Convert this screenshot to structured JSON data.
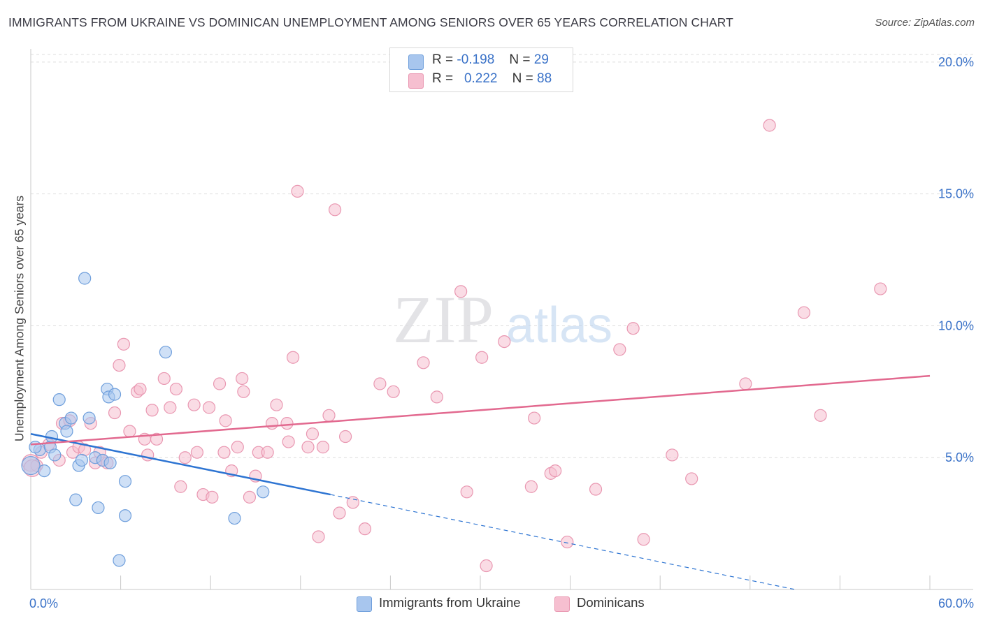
{
  "title": "IMMIGRANTS FROM UKRAINE VS DOMINICAN UNEMPLOYMENT AMONG SENIORS OVER 65 YEARS CORRELATION CHART",
  "source": "Source: ZipAtlas.com",
  "watermark": {
    "zip": "ZIP",
    "atlas": "atlas"
  },
  "legend_top": [
    {
      "r_label": "R =",
      "r_value": "-0.198",
      "n_label": "N =",
      "n_value": "29"
    },
    {
      "r_label": "R =",
      "r_value": "0.222",
      "n_label": "N =",
      "n_value": "88"
    }
  ],
  "legend_bottom": [
    "Immigrants from Ukraine",
    "Dominicans"
  ],
  "colors": {
    "ukraine_fill": "#a8c6ee",
    "ukraine_stroke": "#6f9fdc",
    "ukraine_line": "#2d74d2",
    "dominican_fill": "#f6bfd0",
    "dominican_stroke": "#e997b1",
    "dominican_line": "#e2698f",
    "axis_text": "#3a72c8",
    "grid": "#dddddd"
  },
  "chart_data": {
    "type": "scatter",
    "title": "IMMIGRANTS FROM UKRAINE VS DOMINICAN UNEMPLOYMENT AMONG SENIORS OVER 65 YEARS CORRELATION CHART",
    "xlabel": "",
    "ylabel": "Unemployment Among Seniors over 65 years",
    "xlim": [
      0,
      60
    ],
    "ylim": [
      0,
      20.5
    ],
    "x_tick_labels": [
      "0.0%",
      "60.0%"
    ],
    "y_ticks": [
      5,
      10,
      15,
      20
    ],
    "y_tick_labels": [
      "5.0%",
      "10.0%",
      "15.0%",
      "20.0%"
    ],
    "series": [
      {
        "name": "Immigrants from Ukraine",
        "r": -0.198,
        "n": 29,
        "trend": {
          "x0": 0,
          "y0": 5.9,
          "x1": 20,
          "y1": 3.6,
          "dash_x1": 51,
          "dash_y1": 0
        },
        "points": [
          [
            0.0,
            4.7
          ],
          [
            0.6,
            5.3
          ],
          [
            0.9,
            4.5
          ],
          [
            1.3,
            5.4
          ],
          [
            1.4,
            5.8
          ],
          [
            1.6,
            5.1
          ],
          [
            1.9,
            7.2
          ],
          [
            2.3,
            6.3
          ],
          [
            2.4,
            6.0
          ],
          [
            2.7,
            6.5
          ],
          [
            3.0,
            3.4
          ],
          [
            3.2,
            4.7
          ],
          [
            3.4,
            4.9
          ],
          [
            3.6,
            11.8
          ],
          [
            3.9,
            6.5
          ],
          [
            4.3,
            5.0
          ],
          [
            4.5,
            3.1
          ],
          [
            4.8,
            4.9
          ],
          [
            5.1,
            7.6
          ],
          [
            5.2,
            7.3
          ],
          [
            5.3,
            4.8
          ],
          [
            5.6,
            7.4
          ],
          [
            5.9,
            1.1
          ],
          [
            6.3,
            4.1
          ],
          [
            6.3,
            2.8
          ],
          [
            9.0,
            9.0
          ],
          [
            13.6,
            2.7
          ],
          [
            15.5,
            3.7
          ],
          [
            0.3,
            5.4
          ]
        ]
      },
      {
        "name": "Dominicans",
        "r": 0.222,
        "n": 88,
        "trend": {
          "x0": 0,
          "y0": 5.5,
          "x1": 60,
          "y1": 8.1
        },
        "points": [
          [
            0.0,
            4.8
          ],
          [
            0.4,
            4.7
          ],
          [
            0.7,
            5.2
          ],
          [
            1.2,
            5.5
          ],
          [
            1.9,
            4.9
          ],
          [
            2.1,
            6.3
          ],
          [
            2.6,
            6.4
          ],
          [
            2.8,
            5.2
          ],
          [
            3.2,
            5.4
          ],
          [
            3.6,
            5.3
          ],
          [
            4.0,
            6.3
          ],
          [
            4.3,
            4.8
          ],
          [
            4.6,
            5.2
          ],
          [
            4.8,
            4.9
          ],
          [
            5.1,
            4.8
          ],
          [
            5.6,
            6.7
          ],
          [
            5.9,
            8.5
          ],
          [
            6.2,
            9.3
          ],
          [
            6.6,
            6.0
          ],
          [
            7.1,
            7.5
          ],
          [
            7.3,
            7.6
          ],
          [
            7.6,
            5.7
          ],
          [
            7.8,
            5.1
          ],
          [
            8.1,
            6.8
          ],
          [
            8.4,
            5.7
          ],
          [
            8.9,
            8.0
          ],
          [
            9.3,
            6.9
          ],
          [
            9.7,
            7.6
          ],
          [
            10.0,
            3.9
          ],
          [
            10.3,
            5.0
          ],
          [
            10.9,
            7.0
          ],
          [
            11.1,
            5.2
          ],
          [
            11.5,
            3.6
          ],
          [
            11.9,
            6.9
          ],
          [
            12.1,
            3.5
          ],
          [
            12.6,
            7.8
          ],
          [
            12.9,
            5.2
          ],
          [
            13.0,
            6.4
          ],
          [
            13.4,
            4.5
          ],
          [
            13.8,
            5.4
          ],
          [
            14.1,
            8.0
          ],
          [
            14.2,
            7.5
          ],
          [
            14.6,
            3.5
          ],
          [
            15.0,
            4.3
          ],
          [
            15.2,
            5.2
          ],
          [
            15.8,
            5.2
          ],
          [
            16.1,
            6.3
          ],
          [
            16.4,
            7.0
          ],
          [
            17.1,
            6.3
          ],
          [
            17.2,
            5.6
          ],
          [
            17.5,
            8.8
          ],
          [
            17.8,
            15.1
          ],
          [
            18.5,
            5.4
          ],
          [
            18.8,
            5.9
          ],
          [
            19.2,
            2.0
          ],
          [
            19.5,
            5.4
          ],
          [
            19.9,
            6.6
          ],
          [
            20.3,
            14.4
          ],
          [
            20.6,
            2.9
          ],
          [
            21.0,
            5.8
          ],
          [
            21.5,
            3.3
          ],
          [
            22.3,
            2.3
          ],
          [
            23.3,
            7.8
          ],
          [
            24.2,
            7.5
          ],
          [
            26.2,
            8.6
          ],
          [
            27.1,
            7.3
          ],
          [
            28.7,
            11.3
          ],
          [
            29.1,
            3.7
          ],
          [
            30.1,
            8.8
          ],
          [
            30.4,
            0.9
          ],
          [
            31.6,
            9.4
          ],
          [
            33.4,
            3.9
          ],
          [
            33.6,
            6.5
          ],
          [
            34.7,
            4.4
          ],
          [
            35.0,
            4.5
          ],
          [
            35.8,
            1.8
          ],
          [
            37.7,
            3.8
          ],
          [
            39.3,
            9.1
          ],
          [
            40.2,
            9.9
          ],
          [
            40.9,
            1.9
          ],
          [
            42.8,
            5.1
          ],
          [
            44.1,
            4.2
          ],
          [
            47.7,
            7.8
          ],
          [
            49.3,
            17.6
          ],
          [
            51.6,
            10.5
          ],
          [
            52.7,
            6.6
          ],
          [
            56.7,
            11.4
          ],
          [
            0.1,
            4.6
          ]
        ]
      }
    ]
  }
}
